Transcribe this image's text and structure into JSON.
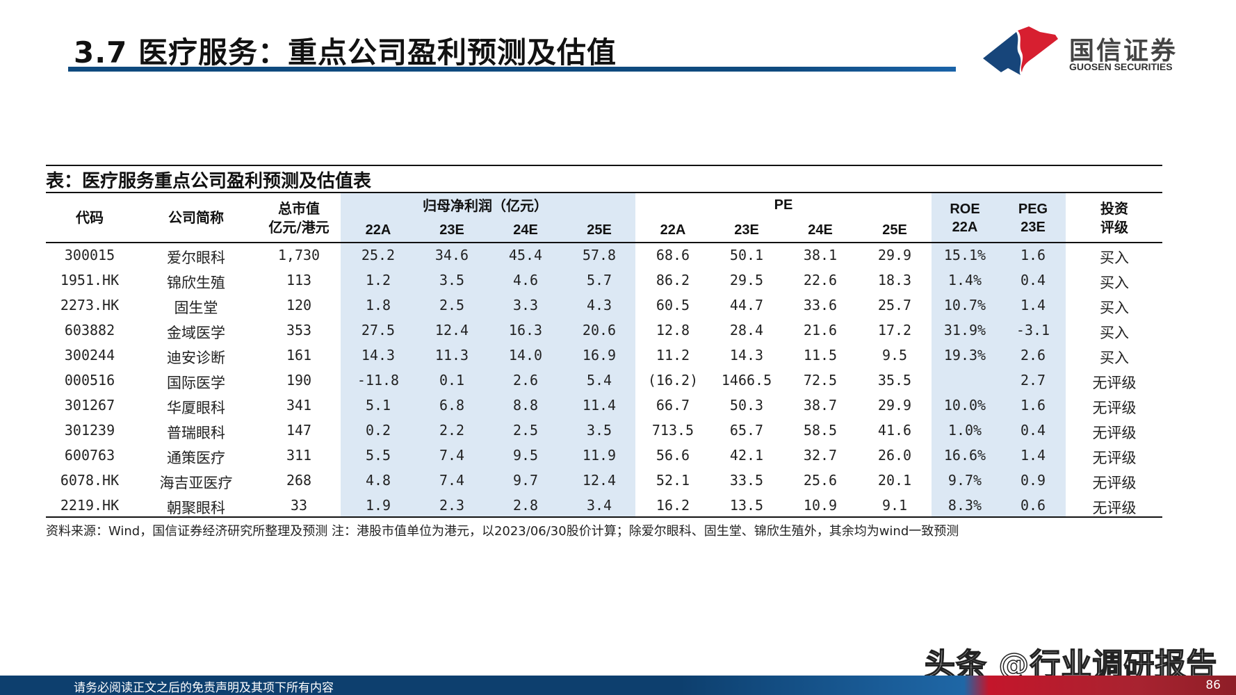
{
  "header": {
    "title": "3.7 医疗服务：重点公司盈利预测及估值",
    "logo_cn": "国信证券",
    "logo_en": "GUOSEN SECURITIES",
    "logo_colors": {
      "blue": "#17457a",
      "red": "#d71f30"
    }
  },
  "table": {
    "caption": "表：医疗服务重点公司盈利预测及估值表",
    "headers": {
      "code": "代码",
      "name": "公司简称",
      "mktcap_line1": "总市值",
      "mktcap_line2": "亿元/港元",
      "profit_group": "归母净利润（亿元）",
      "pe_group": "PE",
      "years": [
        "22A",
        "23E",
        "24E",
        "25E"
      ],
      "roe_line1": "ROE",
      "roe_line2": "22A",
      "peg_line1": "PEG",
      "peg_line2": "23E",
      "rating_line1": "投资",
      "rating_line2": "评级"
    },
    "rows": [
      {
        "code": "300015",
        "name": "爱尔眼科",
        "mktcap": "1,730",
        "np22": "25.2",
        "np23": "34.6",
        "np24": "45.4",
        "np25": "57.8",
        "pe22": "68.6",
        "pe23": "50.1",
        "pe24": "38.1",
        "pe25": "29.9",
        "roe": "15.1%",
        "peg": "1.6",
        "rating": "买入"
      },
      {
        "code": "1951.HK",
        "name": "锦欣生殖",
        "mktcap": "113",
        "np22": "1.2",
        "np23": "3.5",
        "np24": "4.6",
        "np25": "5.7",
        "pe22": "86.2",
        "pe23": "29.5",
        "pe24": "22.6",
        "pe25": "18.3",
        "roe": "1.4%",
        "peg": "0.4",
        "rating": "买入"
      },
      {
        "code": "2273.HK",
        "name": "固生堂",
        "mktcap": "120",
        "np22": "1.8",
        "np23": "2.5",
        "np24": "3.3",
        "np25": "4.3",
        "pe22": "60.5",
        "pe23": "44.7",
        "pe24": "33.6",
        "pe25": "25.7",
        "roe": "10.7%",
        "peg": "1.4",
        "rating": "买入"
      },
      {
        "code": "603882",
        "name": "金域医学",
        "mktcap": "353",
        "np22": "27.5",
        "np23": "12.4",
        "np24": "16.3",
        "np25": "20.6",
        "pe22": "12.8",
        "pe23": "28.4",
        "pe24": "21.6",
        "pe25": "17.2",
        "roe": "31.9%",
        "peg": "-3.1",
        "rating": "买入"
      },
      {
        "code": "300244",
        "name": "迪安诊断",
        "mktcap": "161",
        "np22": "14.3",
        "np23": "11.3",
        "np24": "14.0",
        "np25": "16.9",
        "pe22": "11.2",
        "pe23": "14.3",
        "pe24": "11.5",
        "pe25": "9.5",
        "roe": "19.3%",
        "peg": "2.6",
        "rating": "买入"
      },
      {
        "code": "000516",
        "name": "国际医学",
        "mktcap": "190",
        "np22": "-11.8",
        "np23": "0.1",
        "np24": "2.6",
        "np25": "5.4",
        "pe22": "(16.2)",
        "pe23": "1466.5",
        "pe24": "72.5",
        "pe25": "35.5",
        "roe": "",
        "peg": "2.7",
        "rating": "无评级"
      },
      {
        "code": "301267",
        "name": "华厦眼科",
        "mktcap": "341",
        "np22": "5.1",
        "np23": "6.8",
        "np24": "8.8",
        "np25": "11.4",
        "pe22": "66.7",
        "pe23": "50.3",
        "pe24": "38.7",
        "pe25": "29.9",
        "roe": "10.0%",
        "peg": "1.6",
        "rating": "无评级"
      },
      {
        "code": "301239",
        "name": "普瑞眼科",
        "mktcap": "147",
        "np22": "0.2",
        "np23": "2.2",
        "np24": "2.5",
        "np25": "3.5",
        "pe22": "713.5",
        "pe23": "65.7",
        "pe24": "58.5",
        "pe25": "41.6",
        "roe": "1.0%",
        "peg": "0.4",
        "rating": "无评级"
      },
      {
        "code": "600763",
        "name": "通策医疗",
        "mktcap": "311",
        "np22": "5.5",
        "np23": "7.4",
        "np24": "9.5",
        "np25": "11.9",
        "pe22": "56.6",
        "pe23": "42.1",
        "pe24": "32.7",
        "pe25": "26.0",
        "roe": "16.6%",
        "peg": "1.4",
        "rating": "无评级"
      },
      {
        "code": "6078.HK",
        "name": "海吉亚医疗",
        "mktcap": "268",
        "np22": "4.8",
        "np23": "7.4",
        "np24": "9.7",
        "np25": "12.4",
        "pe22": "52.1",
        "pe23": "33.5",
        "pe24": "25.6",
        "pe25": "20.1",
        "roe": "9.7%",
        "peg": "0.9",
        "rating": "无评级"
      },
      {
        "code": "2219.HK",
        "name": "朝聚眼科",
        "mktcap": "33",
        "np22": "1.9",
        "np23": "2.3",
        "np24": "2.8",
        "np25": "3.4",
        "pe22": "16.2",
        "pe23": "13.5",
        "pe24": "10.9",
        "pe25": "9.1",
        "roe": "8.3%",
        "peg": "0.6",
        "rating": "无评级"
      }
    ],
    "band_color": "#dce8f4"
  },
  "footnote": "资料来源：Wind，国信证券经济研究所整理及预测 注：港股市值单位为港元，以2023/06/30股价计算；除爱尔眼科、固生堂、锦欣生殖外，其余均为wind一致预测",
  "watermark": "头条 @行业调研报告",
  "footer": {
    "disclaimer": "请务必阅读正文之后的免责声明及其项下所有内容",
    "page_number": "86"
  },
  "chart_data": {
    "type": "table",
    "title": "表：医疗服务重点公司盈利预测及估值表",
    "columns": [
      "代码",
      "公司简称",
      "总市值(亿元/港元)",
      "归母净利润22A",
      "归母净利润23E",
      "归母净利润24E",
      "归母净利润25E",
      "PE 22A",
      "PE 23E",
      "PE 24E",
      "PE 25E",
      "ROE 22A",
      "PEG 23E",
      "投资评级"
    ],
    "rows": [
      [
        "300015",
        "爱尔眼科",
        "1,730",
        25.2,
        34.6,
        45.4,
        57.8,
        68.6,
        50.1,
        38.1,
        29.9,
        "15.1%",
        1.6,
        "买入"
      ],
      [
        "1951.HK",
        "锦欣生殖",
        "113",
        1.2,
        3.5,
        4.6,
        5.7,
        86.2,
        29.5,
        22.6,
        18.3,
        "1.4%",
        0.4,
        "买入"
      ],
      [
        "2273.HK",
        "固生堂",
        "120",
        1.8,
        2.5,
        3.3,
        4.3,
        60.5,
        44.7,
        33.6,
        25.7,
        "10.7%",
        1.4,
        "买入"
      ],
      [
        "603882",
        "金域医学",
        "353",
        27.5,
        12.4,
        16.3,
        20.6,
        12.8,
        28.4,
        21.6,
        17.2,
        "31.9%",
        -3.1,
        "买入"
      ],
      [
        "300244",
        "迪安诊断",
        "161",
        14.3,
        11.3,
        14.0,
        16.9,
        11.2,
        14.3,
        11.5,
        9.5,
        "19.3%",
        2.6,
        "买入"
      ],
      [
        "000516",
        "国际医学",
        "190",
        -11.8,
        0.1,
        2.6,
        5.4,
        "(16.2)",
        1466.5,
        72.5,
        35.5,
        "",
        2.7,
        "无评级"
      ],
      [
        "301267",
        "华厦眼科",
        "341",
        5.1,
        6.8,
        8.8,
        11.4,
        66.7,
        50.3,
        38.7,
        29.9,
        "10.0%",
        1.6,
        "无评级"
      ],
      [
        "301239",
        "普瑞眼科",
        "147",
        0.2,
        2.2,
        2.5,
        3.5,
        713.5,
        65.7,
        58.5,
        41.6,
        "1.0%",
        0.4,
        "无评级"
      ],
      [
        "600763",
        "通策医疗",
        "311",
        5.5,
        7.4,
        9.5,
        11.9,
        56.6,
        42.1,
        32.7,
        26.0,
        "16.6%",
        1.4,
        "无评级"
      ],
      [
        "6078.HK",
        "海吉亚医疗",
        "268",
        4.8,
        7.4,
        9.7,
        12.4,
        52.1,
        33.5,
        25.6,
        20.1,
        "9.7%",
        0.9,
        "无评级"
      ],
      [
        "2219.HK",
        "朝聚眼科",
        "33",
        1.9,
        2.3,
        2.8,
        3.4,
        16.2,
        13.5,
        10.9,
        9.1,
        "8.3%",
        0.6,
        "无评级"
      ]
    ]
  }
}
